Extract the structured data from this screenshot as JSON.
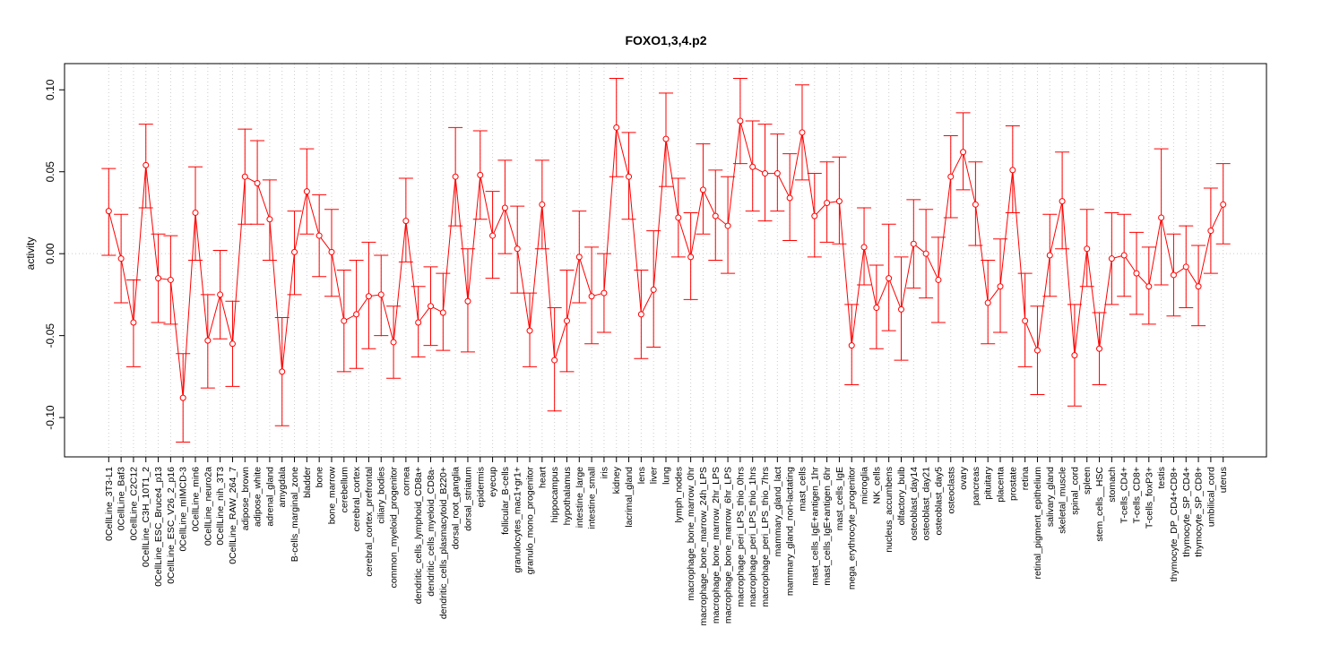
{
  "chart_data": {
    "type": "line",
    "title": "FOXO1,3,4.p2",
    "xlabel": "",
    "ylabel": "activity",
    "ylim": [
      -0.124,
      0.116
    ],
    "yticks": [
      -0.1,
      -0.05,
      0.0,
      0.05,
      0.1
    ],
    "ytick_labels": [
      "-0.10",
      "-0.05",
      "0.00",
      "0.05",
      "0.10"
    ],
    "grid": true,
    "colors": {
      "series": "#ff0000",
      "grid": "#cccccc",
      "axis": "#000000"
    },
    "error_bars": true,
    "categories": [
      "0CellLine_3T3-L1",
      "0CellLine_Baf3",
      "0CellLine_C2C12",
      "0CellLine_C3H_10T1_2",
      "0CellLine_ESC_Bruce4_p13",
      "0CellLine_ESC_V26_2_p16",
      "0CellLine_mIMCD-3",
      "0CellLine_min6",
      "0CellLine_neuro2a",
      "0CellLine_nih_3T3",
      "0CellLine_RAW_264_7",
      "adipose_brown",
      "adipose_white",
      "adrenal_gland",
      "amygdala",
      "B-cells_marginal_zone",
      "bladder",
      "bone",
      "bone_marrow",
      "cerebellum",
      "cerebral_cortex",
      "cerebral_cortex_prefrontal",
      "ciliary_bodies",
      "common_myeloid_progenitor",
      "cornea",
      "dendritic_cells_lymphoid_CD8a+",
      "dendritic_cells_myeloid_CD8a-",
      "dendritic_cells_plasmacytoid_B220+",
      "dorsal_root_ganglia",
      "dorsal_striatum",
      "epidermis",
      "eyecup",
      "follicular_B-cells",
      "granulocytes_mac1+gr1+",
      "granulo_mono_progenitor",
      "heart",
      "hippocampus",
      "hypothalamus",
      "intestine_large",
      "intestine_small",
      "iris",
      "kidney",
      "lacrimal_gland",
      "lens",
      "liver",
      "lung",
      "lymph_nodes",
      "macrophage_bone_marrow_0hr",
      "macrophage_bone_marrow_24h_LPS",
      "macrophage_bone_marrow_2hr_LPS",
      "macrophage_bone_marrow_6hr_LPS",
      "macrophage_peri_LPS_thio_0hrs",
      "macrophage_peri_LPS_thio_1hrs",
      "macrophage_peri_LPS_thio_7hrs",
      "mammary_gland_lact",
      "mammary_gland_non-lactating",
      "mast_cells",
      "mast_cells_IgE+antigen_1hr",
      "mast_cells_IgE+antigen_6hr",
      "mast_cells_IgE",
      "mega_erythrocyte_progenitor",
      "microglia",
      "NK_cells",
      "nucleus_accumbens",
      "olfactory_bulb",
      "osteoblast_day14",
      "osteoblast_day21",
      "osteoblast_day5",
      "osteoclasts",
      "ovary",
      "pancreas",
      "pituitary",
      "placenta",
      "prostate",
      "retina",
      "retinal_pigment_epithelium",
      "salivary_gland",
      "skeletal_muscle",
      "spinal_cord",
      "spleen",
      "stem_cells__HSC",
      "stomach",
      "T-cells_CD4+",
      "T-cells_CD8+",
      "T-cells_foxP3+",
      "testis",
      "thymocyte_DP_CD4+CD8+",
      "thymocyte_SP_CD4+",
      "thymocyte_SP_CD8+",
      "umbilical_cord",
      "uterus"
    ],
    "series": [
      {
        "values": [
          0.026,
          -0.003,
          -0.042,
          0.054,
          -0.015,
          -0.016,
          -0.088,
          0.025,
          -0.053,
          -0.025,
          -0.055,
          0.047,
          0.043,
          0.021,
          -0.072,
          0.001,
          0.038,
          0.011,
          0.001,
          -0.041,
          -0.037,
          -0.026,
          -0.025,
          -0.054,
          0.02,
          -0.042,
          -0.032,
          -0.036,
          0.047,
          -0.029,
          0.048,
          0.011,
          0.028,
          0.003,
          -0.047,
          0.03,
          -0.065,
          -0.041,
          -0.002,
          -0.026,
          -0.024,
          0.077,
          0.047,
          -0.037,
          -0.022,
          0.07,
          0.022,
          -0.002,
          0.039,
          0.023,
          0.017,
          0.081,
          0.053,
          0.049,
          0.049,
          0.034,
          0.074,
          0.023,
          0.031,
          0.032,
          -0.056,
          0.004,
          -0.033,
          -0.015,
          -0.034,
          0.006,
          0.0,
          -0.016,
          0.047,
          0.062,
          0.03,
          -0.03,
          -0.02,
          0.051,
          -0.041,
          -0.059,
          -0.001,
          0.032,
          -0.062,
          0.003,
          -0.058,
          -0.003,
          -0.001,
          -0.012,
          -0.02,
          0.022,
          -0.013,
          -0.008,
          -0.02,
          0.014,
          0.03
        ],
        "lower": [
          -0.001,
          -0.03,
          -0.069,
          0.028,
          -0.042,
          -0.043,
          -0.115,
          -0.004,
          -0.082,
          -0.052,
          -0.081,
          0.018,
          0.018,
          -0.004,
          -0.105,
          -0.025,
          0.012,
          -0.014,
          -0.026,
          -0.072,
          -0.07,
          -0.058,
          -0.05,
          -0.076,
          -0.005,
          -0.063,
          -0.056,
          -0.059,
          0.017,
          -0.06,
          0.021,
          -0.015,
          0.0,
          -0.024,
          -0.069,
          0.003,
          -0.096,
          -0.072,
          -0.03,
          -0.055,
          -0.048,
          0.047,
          0.021,
          -0.064,
          -0.057,
          0.041,
          -0.002,
          -0.028,
          0.012,
          -0.004,
          -0.012,
          0.055,
          0.026,
          0.02,
          0.026,
          0.008,
          0.045,
          -0.002,
          0.007,
          0.006,
          -0.08,
          -0.019,
          -0.058,
          -0.047,
          -0.065,
          -0.021,
          -0.027,
          -0.042,
          0.022,
          0.039,
          0.005,
          -0.055,
          -0.048,
          0.025,
          -0.069,
          -0.086,
          -0.026,
          0.003,
          -0.093,
          -0.02,
          -0.08,
          -0.031,
          -0.026,
          -0.037,
          -0.043,
          -0.019,
          -0.038,
          -0.033,
          -0.044,
          -0.012,
          0.006
        ],
        "upper": [
          0.052,
          0.024,
          -0.016,
          0.079,
          0.012,
          0.011,
          -0.061,
          0.053,
          -0.025,
          0.002,
          -0.029,
          0.076,
          0.069,
          0.045,
          -0.039,
          0.026,
          0.064,
          0.036,
          0.027,
          -0.01,
          -0.004,
          0.007,
          -0.001,
          -0.032,
          0.046,
          -0.02,
          -0.008,
          -0.012,
          0.077,
          0.003,
          0.075,
          0.038,
          0.057,
          0.029,
          -0.024,
          0.057,
          -0.033,
          -0.01,
          0.026,
          0.004,
          0.0,
          0.107,
          0.074,
          -0.01,
          0.014,
          0.098,
          0.046,
          0.025,
          0.067,
          0.051,
          0.047,
          0.107,
          0.081,
          0.079,
          0.073,
          0.061,
          0.103,
          0.049,
          0.056,
          0.059,
          -0.031,
          0.028,
          -0.007,
          0.018,
          -0.002,
          0.033,
          0.027,
          0.01,
          0.072,
          0.086,
          0.056,
          -0.004,
          0.009,
          0.078,
          -0.012,
          -0.032,
          0.024,
          0.062,
          -0.031,
          0.027,
          -0.036,
          0.025,
          0.024,
          0.013,
          0.004,
          0.064,
          0.012,
          0.017,
          0.005,
          0.04,
          0.055
        ]
      }
    ]
  }
}
